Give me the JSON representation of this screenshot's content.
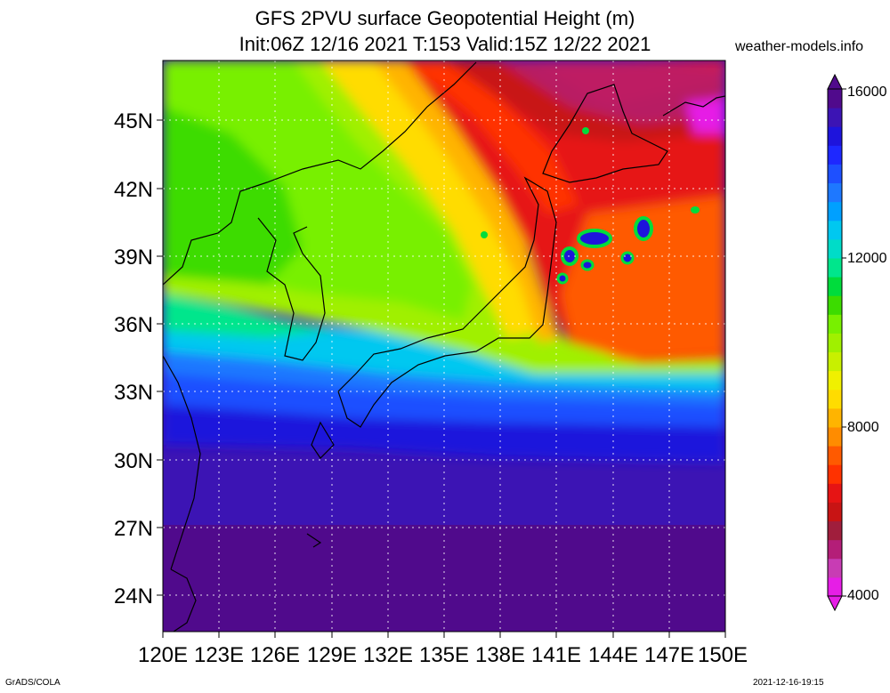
{
  "header": {
    "title_line1": "GFS 2PVU surface Geopotential Height (m)",
    "title_line2": "Init:06Z 12/16 2021 T:153 Valid:15Z 12/22 2021",
    "credit": "weather-models.info"
  },
  "map": {
    "lon_range": [
      120,
      150
    ],
    "lat_range": [
      22.5,
      47.8
    ],
    "lat_labels": [
      "45N",
      "42N",
      "39N",
      "36N",
      "33N",
      "30N",
      "27N",
      "24N"
    ],
    "lon_labels": [
      "120E",
      "123E",
      "126E",
      "129E",
      "132E",
      "135E",
      "138E",
      "141E",
      "144E",
      "147E",
      "150E"
    ]
  },
  "colorbar": {
    "labels": [
      "16000",
      "12000",
      "8000",
      "4000"
    ],
    "colors": [
      "#e61ee6",
      "#c83cb4",
      "#b41e78",
      "#a01e3c",
      "#c81414",
      "#e61414",
      "#ff3200",
      "#ff5a00",
      "#ff8c00",
      "#ffb400",
      "#ffdc00",
      "#f0f000",
      "#c8f000",
      "#a0f000",
      "#78f000",
      "#3cdc00",
      "#00dc3c",
      "#00e68c",
      "#00dcc8",
      "#00c8f0",
      "#00a0ff",
      "#1e78ff",
      "#1e50ff",
      "#1e28ff",
      "#1e14dc",
      "#3c14b4",
      "#500a8c"
    ]
  },
  "footer": {
    "left": "GrADS/COLA",
    "right": "2021-12-16-19:15"
  }
}
